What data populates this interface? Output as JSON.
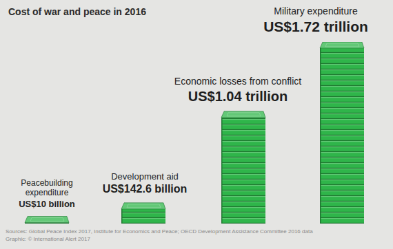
{
  "chart_data": {
    "type": "bar",
    "title": "Cost of war and peace in 2016",
    "categories": [
      "Peacebuilding expenditure",
      "Development aid",
      "Economic losses from conflict",
      "Military expenditure"
    ],
    "values": [
      10,
      142.6,
      1040,
      1720
    ],
    "value_labels": [
      "US$10 billion",
      "US$142.6 billion",
      "US$1.04 trillion",
      "US$1.72 trillion"
    ],
    "color": "#2fb54a",
    "ylim": [
      0,
      1720
    ],
    "data_labels": true,
    "annotations": [
      "Sources: Global Peace Index 2017, Institute for Economics and Peace; OECD Development Assistance Committee 2016 data",
      "Graphic: © International Alert 2017"
    ]
  }
}
